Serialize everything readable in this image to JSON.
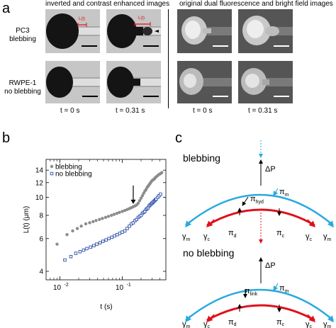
{
  "panel_a": {
    "letter": "a",
    "header_left": "inverted and contrast enhanced images",
    "header_right": "original dual fluorescence and bright field images",
    "row1_label_line1": "PC3",
    "row1_label_line2": "blebbing",
    "row2_label_line1": "RWPE-1",
    "row2_label_line2": "no blebbing",
    "times": [
      "t = 0 s",
      "t = 0.31 s",
      "t = 0 s",
      "t = 0.31 s"
    ],
    "marker_small": "L(t)"
  },
  "panel_b": {
    "letter": "b",
    "chart_data": {
      "type": "scatter",
      "xlabel": "t (s)",
      "ylabel": "L(t) (μm)",
      "x_scale": "log",
      "y_scale": "log",
      "xlim": [
        0.006,
        0.5
      ],
      "ylim": [
        3.6,
        16
      ],
      "x_tick_labels": [
        "10",
        "10"
      ],
      "x_tick_exponents": [
        "-2",
        "-1"
      ],
      "y_tick_values": [
        4,
        6,
        8,
        10,
        12,
        14
      ],
      "y_tick_labels": [
        "4",
        "6",
        "8",
        "10",
        "12",
        "14"
      ],
      "legend_position": "top-left",
      "series": [
        {
          "name": "blebbing",
          "color": "#8c8c8c",
          "marker": "circle",
          "x": [
            0.009,
            0.013,
            0.016,
            0.019,
            0.022,
            0.026,
            0.03,
            0.034,
            0.038,
            0.043,
            0.048,
            0.054,
            0.06,
            0.067,
            0.074,
            0.082,
            0.09,
            0.1,
            0.11,
            0.12,
            0.13,
            0.14,
            0.15,
            0.16,
            0.17,
            0.18,
            0.19,
            0.2,
            0.21,
            0.22,
            0.23,
            0.24,
            0.25,
            0.26,
            0.27,
            0.28,
            0.29,
            0.3,
            0.31,
            0.32,
            0.33,
            0.34,
            0.35,
            0.37,
            0.39,
            0.41,
            0.43
          ],
          "y": [
            5.6,
            6.3,
            6.6,
            6.8,
            7.0,
            7.2,
            7.3,
            7.4,
            7.5,
            7.6,
            7.7,
            7.8,
            7.9,
            8.0,
            8.1,
            8.2,
            8.3,
            8.4,
            8.5,
            8.6,
            8.7,
            8.8,
            8.9,
            9.0,
            9.1,
            9.3,
            9.6,
            9.9,
            10.2,
            10.5,
            10.8,
            11.0,
            11.3,
            11.5,
            11.7,
            11.9,
            12.1,
            12.3,
            12.4,
            12.5,
            12.6,
            12.8,
            12.9,
            13.1,
            13.3,
            13.4,
            13.6
          ]
        },
        {
          "name": "no blebbing",
          "color": "#2e4fa8",
          "marker": "square",
          "x": [
            0.012,
            0.015,
            0.018,
            0.021,
            0.024,
            0.027,
            0.031,
            0.035,
            0.039,
            0.044,
            0.049,
            0.055,
            0.061,
            0.068,
            0.075,
            0.083,
            0.091,
            0.1,
            0.11,
            0.12,
            0.13,
            0.14,
            0.15,
            0.16,
            0.17,
            0.18,
            0.19,
            0.2,
            0.21,
            0.22,
            0.23,
            0.24,
            0.25,
            0.26,
            0.27,
            0.28,
            0.29,
            0.3,
            0.31,
            0.32,
            0.33,
            0.34,
            0.35,
            0.37,
            0.39,
            0.41
          ],
          "y": [
            4.6,
            4.8,
            5.0,
            5.1,
            5.2,
            5.3,
            5.4,
            5.5,
            5.6,
            5.7,
            5.8,
            5.9,
            6.0,
            6.1,
            6.2,
            6.3,
            6.4,
            6.5,
            6.6,
            6.8,
            7.0,
            7.2,
            7.3,
            7.5,
            7.6,
            7.8,
            7.9,
            8.0,
            8.2,
            8.3,
            8.4,
            8.6,
            8.7,
            8.8,
            9.0,
            9.1,
            9.2,
            9.3,
            9.4,
            9.5,
            9.6,
            9.7,
            9.8,
            10.0,
            10.2,
            10.4
          ]
        }
      ],
      "annotation_arrow_at": {
        "x": 0.15,
        "y": 8.9
      }
    }
  },
  "panel_c": {
    "letter": "c",
    "top_title": "blebbing",
    "bottom_title": "no blebbing",
    "delta_p": "ΔP",
    "pi_hyd_sym": "π",
    "pi_hyd_sub": "hyd",
    "pi_m_sym": "π",
    "pi_m_sub": "m",
    "pi_d_sym": "π",
    "pi_d_sub": "d",
    "pi_c_sym": "π",
    "pi_c_sub": "c",
    "pi_link_sym": "π",
    "pi_link_sub": "link",
    "gamma_sym": "γ",
    "gamma_m_sub": "m",
    "gamma_c_sub": "c",
    "colors": {
      "membrane": "#29a9e0",
      "cortex": "#e0101a"
    }
  }
}
